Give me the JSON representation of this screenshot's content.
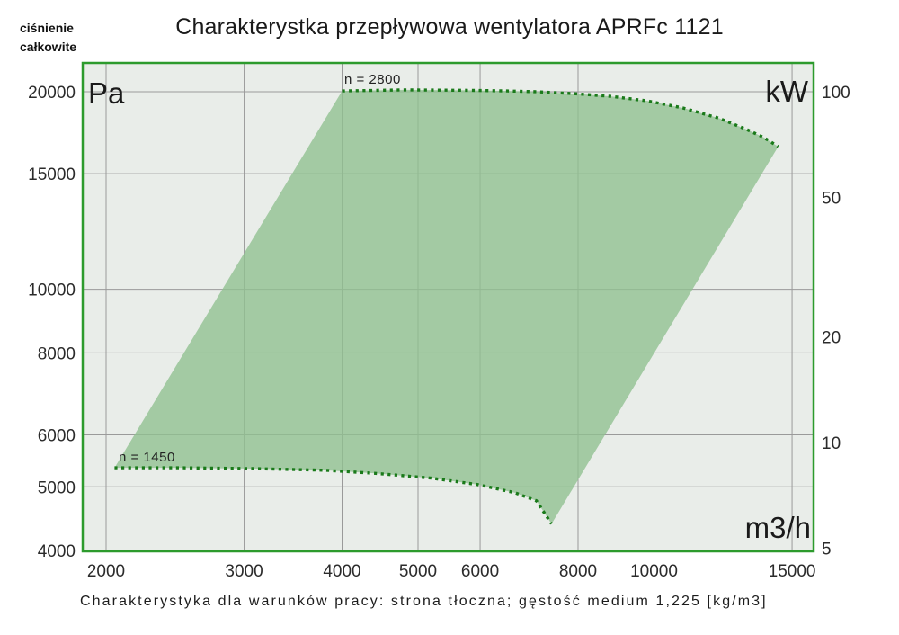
{
  "title": "Charakterystka przepływowa wentylatora APRFc 1121",
  "corner_label": {
    "lines": [
      "ciśnienie",
      "całkowite"
    ]
  },
  "caption": "Charakterystyka dla warunków pracy: strona tłoczna; gęstość medium 1,225 [kg/m3]",
  "units": {
    "pressure": "Pa",
    "power": "kW",
    "flow": "m3/h"
  },
  "curve_labels": {
    "upper": "n = 2800",
    "lower": "n = 1450"
  },
  "colors": {
    "plot_background": "#e9ede9",
    "grid": "#9a9a9a",
    "plot_border": "#2d9b2d",
    "envelope_fill": "#8fc08f",
    "envelope_fill_opacity": 0.78,
    "curve_dotted": "#1a7a1a",
    "tick_text": "#2b2b2b"
  },
  "chart_data": {
    "type": "area",
    "title": "Charakterystka przepływowa wentylatora APRFc 1121",
    "subtitle": "Charakterystyka dla warunków pracy: strona tłoczna; gęstość medium 1,225 [kg/m3]",
    "grid": true,
    "x_axis": {
      "label": "m3/h",
      "scale": "log",
      "ticks": [
        2000,
        3000,
        4000,
        5000,
        6000,
        8000,
        10000,
        15000
      ],
      "range": [
        1870,
        16000
      ]
    },
    "y_axis_left": {
      "label": "Pa",
      "description": "ciśnienie całkowite",
      "scale": "log",
      "ticks": [
        20000,
        15000,
        10000,
        8000,
        6000,
        5000,
        4000
      ],
      "range": [
        4000,
        22300
      ]
    },
    "y_axis_right": {
      "label": "kW",
      "scale": "log",
      "ticks": [
        100,
        50,
        20,
        10,
        5
      ],
      "range": [
        5,
        124
      ]
    },
    "series": [
      {
        "name": "n = 2800",
        "role": "upper-boundary",
        "style": "dotted",
        "points": [
          [
            4000,
            20060
          ],
          [
            4800,
            20130
          ],
          [
            5800,
            20100
          ],
          [
            6500,
            20060
          ],
          [
            7100,
            20000
          ],
          [
            7900,
            19870
          ],
          [
            8800,
            19680
          ],
          [
            9800,
            19370
          ],
          [
            10900,
            18890
          ],
          [
            12100,
            18230
          ],
          [
            13100,
            17540
          ],
          [
            13800,
            17040
          ],
          [
            14400,
            16500
          ]
        ]
      },
      {
        "name": "n = 1450",
        "role": "lower-boundary",
        "style": "dotted",
        "points": [
          [
            2050,
            5345
          ],
          [
            2500,
            5345
          ],
          [
            3080,
            5330
          ],
          [
            3800,
            5300
          ],
          [
            4430,
            5240
          ],
          [
            5200,
            5155
          ],
          [
            5950,
            5040
          ],
          [
            6640,
            4900
          ],
          [
            7080,
            4760
          ],
          [
            7400,
            4390
          ]
        ]
      }
    ],
    "envelope": "operating area between curves n=1450 and n=2800, left/right edges follow fan affinity lines, filled translucent green"
  }
}
